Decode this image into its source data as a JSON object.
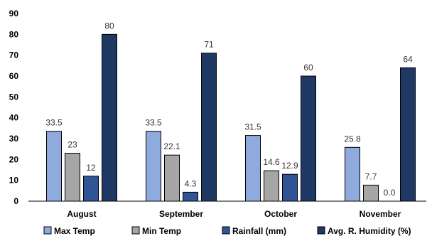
{
  "chart_data": {
    "type": "bar",
    "categories": [
      "August",
      "September",
      "October",
      "November"
    ],
    "series": [
      {
        "name": "Max Temp",
        "values": [
          33.5,
          33.5,
          31.5,
          25.8
        ],
        "labels": [
          "33.5",
          "33.5",
          "31.5",
          "25.8"
        ],
        "color": "#8faadc"
      },
      {
        "name": "Min Temp",
        "values": [
          23,
          22.1,
          14.6,
          7.7
        ],
        "labels": [
          "23",
          "22.1",
          "14.6",
          "7.7"
        ],
        "color": "#a6a6a6"
      },
      {
        "name": "Rainfall (mm)",
        "values": [
          12,
          4.3,
          12.9,
          0.0
        ],
        "labels": [
          "12",
          "4.3",
          "12.9",
          "0.0"
        ],
        "color": "#2f5597"
      },
      {
        "name": "Avg. R. Humidity (%)",
        "values": [
          80,
          71,
          60,
          64
        ],
        "labels": [
          "80",
          "71",
          "60",
          "64"
        ],
        "color": "#203864"
      }
    ],
    "ylim": [
      0,
      90
    ],
    "yticks": [
      0,
      10,
      20,
      30,
      40,
      50,
      60,
      70,
      80,
      90
    ],
    "grid": false,
    "legend_position": "bottom"
  }
}
